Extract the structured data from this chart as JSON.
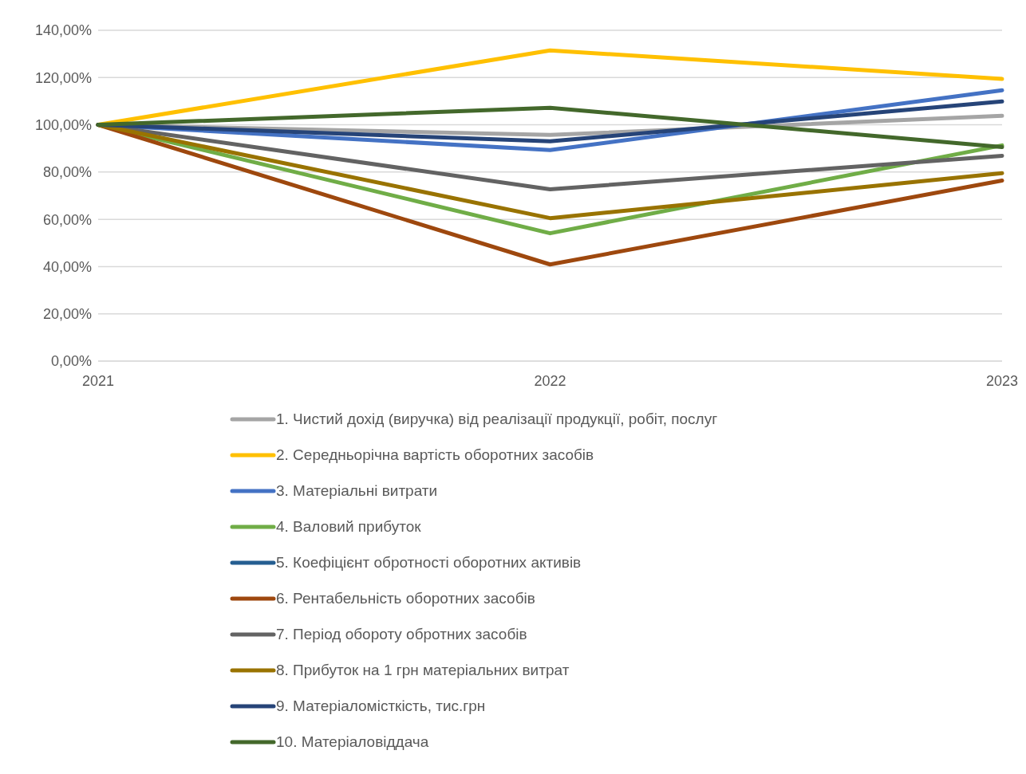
{
  "chart_data": {
    "type": "line",
    "categories": [
      "2021",
      "2022",
      "2023"
    ],
    "ylim": [
      0,
      140
    ],
    "yticks": [
      {
        "value": 0,
        "label": "0,00%"
      },
      {
        "value": 20,
        "label": "20,00%"
      },
      {
        "value": 40,
        "label": "40,00%"
      },
      {
        "value": 60,
        "label": "60,00%"
      },
      {
        "value": 80,
        "label": "80,00%"
      },
      {
        "value": 100,
        "label": "100,00%"
      },
      {
        "value": 120,
        "label": "120,00%"
      },
      {
        "value": 140,
        "label": "140,00%"
      }
    ],
    "grid": "y",
    "legend": "bottom",
    "marker": "none",
    "line_style": "solid",
    "series": [
      {
        "name": "1. Чистий дохід (виручка) від реалізації продукції, робіт, послуг",
        "color": "#a5a5a5",
        "values": [
          100,
          95.7,
          103.8
        ]
      },
      {
        "name": "2. Середньорічна вартість оборотних засобів",
        "color": "#ffc000",
        "values": [
          100,
          131.5,
          119.4
        ]
      },
      {
        "name": "3. Матеріальні витрати",
        "color": "#4472c4",
        "values": [
          100,
          89.3,
          114.6
        ]
      },
      {
        "name": "4. Валовий прибуток",
        "color": "#70ad47",
        "values": [
          100,
          54.1,
          91.3
        ]
      },
      {
        "name": "5. Коефіцієнт обротності оборотних активів",
        "color": "#255e91",
        "values": [
          null,
          null,
          null
        ]
      },
      {
        "name": "6. Рентабельність оборотних засобів",
        "color": "#9e480e",
        "values": [
          100,
          40.9,
          76.4
        ]
      },
      {
        "name": "7. Період обороту обротних засобів",
        "color": "#636363",
        "values": [
          100,
          72.7,
          86.9
        ]
      },
      {
        "name": "8. Прибуток на 1 грн матеріальних витрат",
        "color": "#997300",
        "values": [
          100,
          60.5,
          79.5
        ]
      },
      {
        "name": "9. Матеріаломісткість, тис.грн",
        "color": "#264478",
        "values": [
          100,
          93.0,
          109.9
        ]
      },
      {
        "name": "10. Матеріаловіддача",
        "color": "#43682b",
        "values": [
          100,
          107.2,
          90.6
        ]
      }
    ]
  }
}
